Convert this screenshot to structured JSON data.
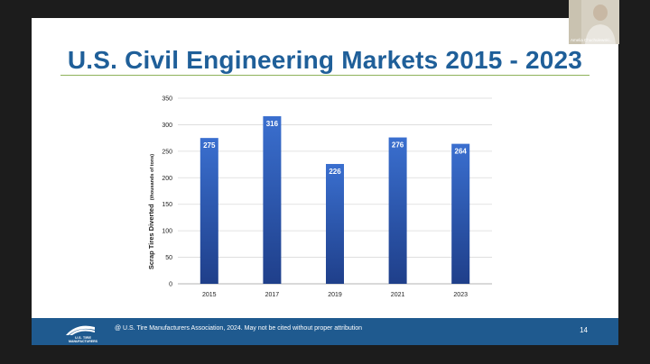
{
  "slide": {
    "title": "U.S. Civil Engineering Markets 2015 - 2023",
    "footer": "@ U.S. Tire Manufacturers Association, 2024. May not be cited without proper attribution",
    "page_number": "14",
    "logo_text_1": "U.S. TIRE",
    "logo_text_2": "MANUFACTURERS"
  },
  "video": {
    "participant_name": "Amelia Chuchulewski..."
  },
  "colors": {
    "title": "#1f5f99",
    "bar_top": "#3a6fcf",
    "bar_bottom": "#1f3f8a",
    "footer": "#1f5a8f",
    "rule": "#8fb25a"
  },
  "chart_data": {
    "type": "bar",
    "categories": [
      "2015",
      "2017",
      "2019",
      "2021",
      "2023"
    ],
    "values": [
      275,
      316,
      226,
      276,
      264
    ],
    "data_labels": [
      "275",
      "316",
      "226",
      "276",
      "264"
    ],
    "title": "",
    "xlabel": "",
    "ylabel": "Scrap Tires Diverted",
    "ylabel_unit": "(thousands of tons)",
    "ylim": [
      0,
      350
    ],
    "yticks": [
      0,
      50,
      100,
      150,
      200,
      250,
      300,
      350
    ],
    "grid": true
  }
}
